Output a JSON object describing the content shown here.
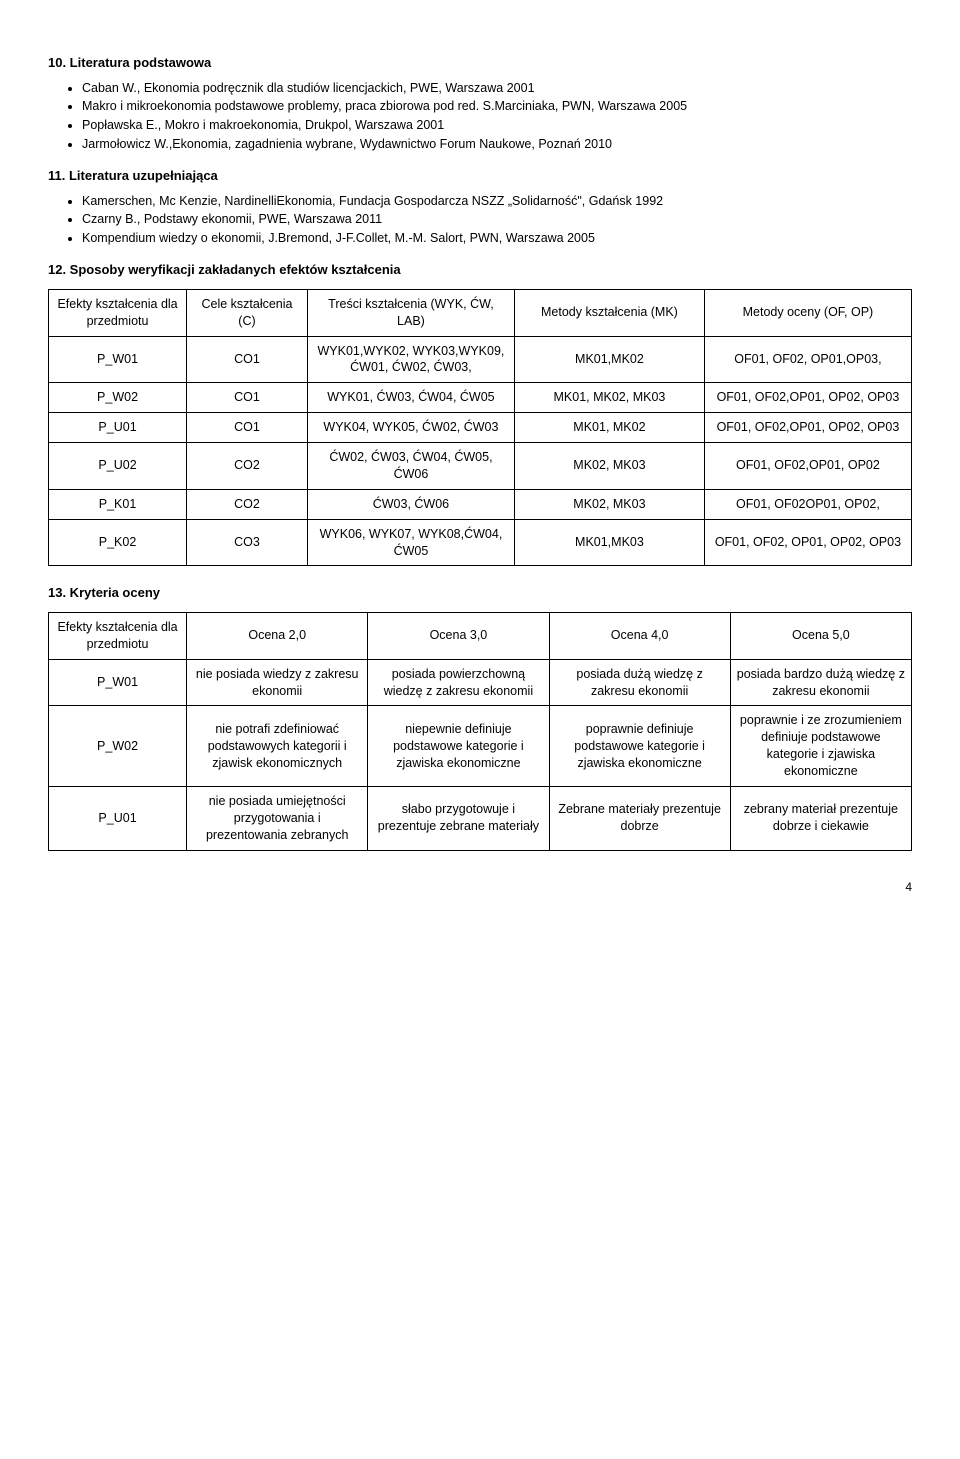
{
  "sections": {
    "s10": {
      "title": "10. Literatura podstawowa",
      "items": [
        "Caban W., Ekonomia podręcznik dla studiów licencjackich, PWE, Warszawa 2001",
        "Makro i mikroekonomia podstawowe problemy, praca zbiorowa pod red. S.Marciniaka, PWN, Warszawa 2005",
        "Popławska E., Mokro i makroekonomia, Drukpol, Warszawa 2001",
        "Jarmołowicz W.,Ekonomia, zagadnienia wybrane, Wydawnictwo Forum Naukowe, Poznań 2010"
      ]
    },
    "s11": {
      "title": "11. Literatura uzupełniająca",
      "items": [
        "Kamerschen, Mc Kenzie, NardinelliEkonomia, Fundacja Gospodarcza NSZZ „Solidarność\", Gdańsk 1992",
        "Czarny B., Podstawy ekonomii, PWE, Warszawa 2011",
        "Kompendium wiedzy o ekonomii, J.Bremond, J-F.Collet, M.-M. Salort, PWN, Warszawa 2005"
      ]
    },
    "s12": {
      "title": "12. Sposoby weryfikacji zakładanych efektów kształcenia",
      "headers": [
        "Efekty kształcenia dla przedmiotu",
        "Cele kształcenia (C)",
        "Treści kształcenia (WYK, ĆW, LAB)",
        "Metody kształcenia (MK)",
        "Metody oceny (OF, OP)"
      ],
      "rows": [
        [
          "P_W01",
          "CO1",
          "WYK01,WYK02, WYK03,WYK09, ĆW01, ĆW02, ĆW03,",
          "MK01,MK02",
          "OF01, OF02, OP01,OP03,"
        ],
        [
          "P_W02",
          "CO1",
          "WYK01, ĆW03, ĆW04, ĆW05",
          "MK01, MK02, MK03",
          "OF01, OF02,OP01, OP02, OP03"
        ],
        [
          "P_U01",
          "CO1",
          "WYK04, WYK05, ĆW02, ĆW03",
          "MK01, MK02",
          "OF01, OF02,OP01, OP02, OP03"
        ],
        [
          "P_U02",
          "CO2",
          "ĆW02, ĆW03, ĆW04, ĆW05, ĆW06",
          "MK02, MK03",
          "OF01, OF02,OP01, OP02"
        ],
        [
          "P_K01",
          "CO2",
          "ĆW03, ĆW06",
          "MK02, MK03",
          "OF01, OF02OP01, OP02,"
        ],
        [
          "P_K02",
          "CO3",
          "WYK06, WYK07, WYK08,ĆW04, ĆW05",
          "MK01,MK03",
          "OF01, OF02, OP01, OP02, OP03"
        ]
      ]
    },
    "s13": {
      "title": "13. Kryteria oceny",
      "headers": [
        "Efekty kształcenia dla przedmiotu",
        "Ocena 2,0",
        "Ocena 3,0",
        "Ocena 4,0",
        "Ocena 5,0"
      ],
      "rows": [
        [
          "P_W01",
          "nie posiada wiedzy z zakresu ekonomii",
          "posiada powierzchowną wiedzę z zakresu ekonomii",
          "posiada dużą wiedzę z zakresu ekonomii",
          "posiada bardzo dużą wiedzę z zakresu ekonomii"
        ],
        [
          "P_W02",
          "nie potrafi zdefiniować podstawowych kategorii i zjawisk ekonomicznych",
          "niepewnie definiuje podstawowe kategorie i zjawiska ekonomiczne",
          "poprawnie definiuje podstawowe kategorie i zjawiska ekonomiczne",
          "poprawnie i ze zrozumieniem definiuje podstawowe kategorie i zjawiska ekonomiczne"
        ],
        [
          "P_U01",
          "nie posiada umiejętności przygotowania i prezentowania zebranych",
          "słabo przygotowuje i prezentuje zebrane materiały",
          "Zebrane materiały prezentuje dobrze",
          "zebrany materiał prezentuje dobrze i ciekawie"
        ]
      ]
    }
  },
  "page_number": "4"
}
